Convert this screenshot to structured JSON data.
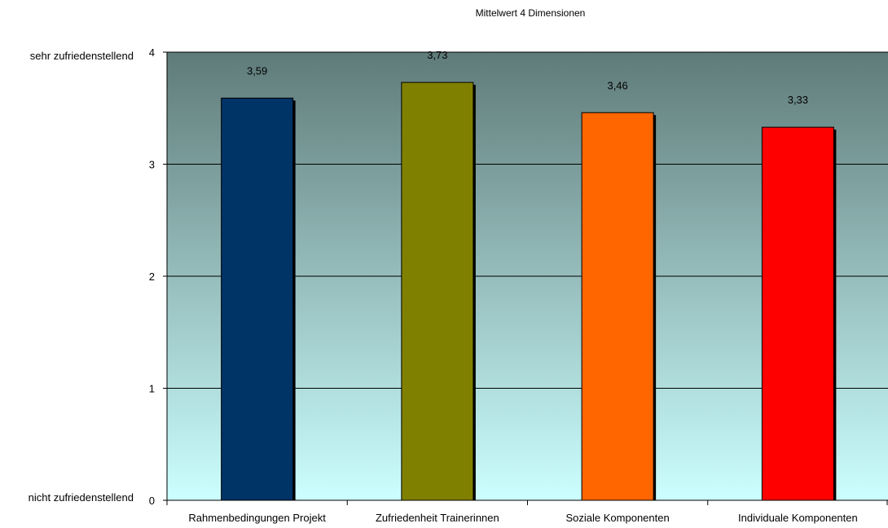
{
  "chart_data": {
    "type": "bar",
    "title": "Mittelwert 4 Dimensionen",
    "categories": [
      "Rahmenbedingungen Projekt",
      "Zufriedenheit Trainerinnen",
      "Soziale Komponenten",
      "Individuale Komponenten"
    ],
    "values": [
      3.59,
      3.73,
      3.46,
      3.33
    ],
    "data_labels": [
      "3,59",
      "3,73",
      "3,46",
      "3,33"
    ],
    "bar_colors": [
      "#003366",
      "#808000",
      "#FF6600",
      "#FF0000"
    ],
    "ylim": [
      0,
      4
    ],
    "yticks": [
      0,
      1,
      2,
      3,
      4
    ],
    "ytick_labels": [
      "0",
      "1",
      "2",
      "3",
      "4"
    ],
    "y_end_labels": {
      "top": "sehr zufriedenstellend",
      "bottom": "nicht zufriedenstellend"
    },
    "grid": true,
    "legend": "none",
    "background_gradient": {
      "top": "#5F7B79",
      "bottom": "#CCFFFF"
    }
  }
}
